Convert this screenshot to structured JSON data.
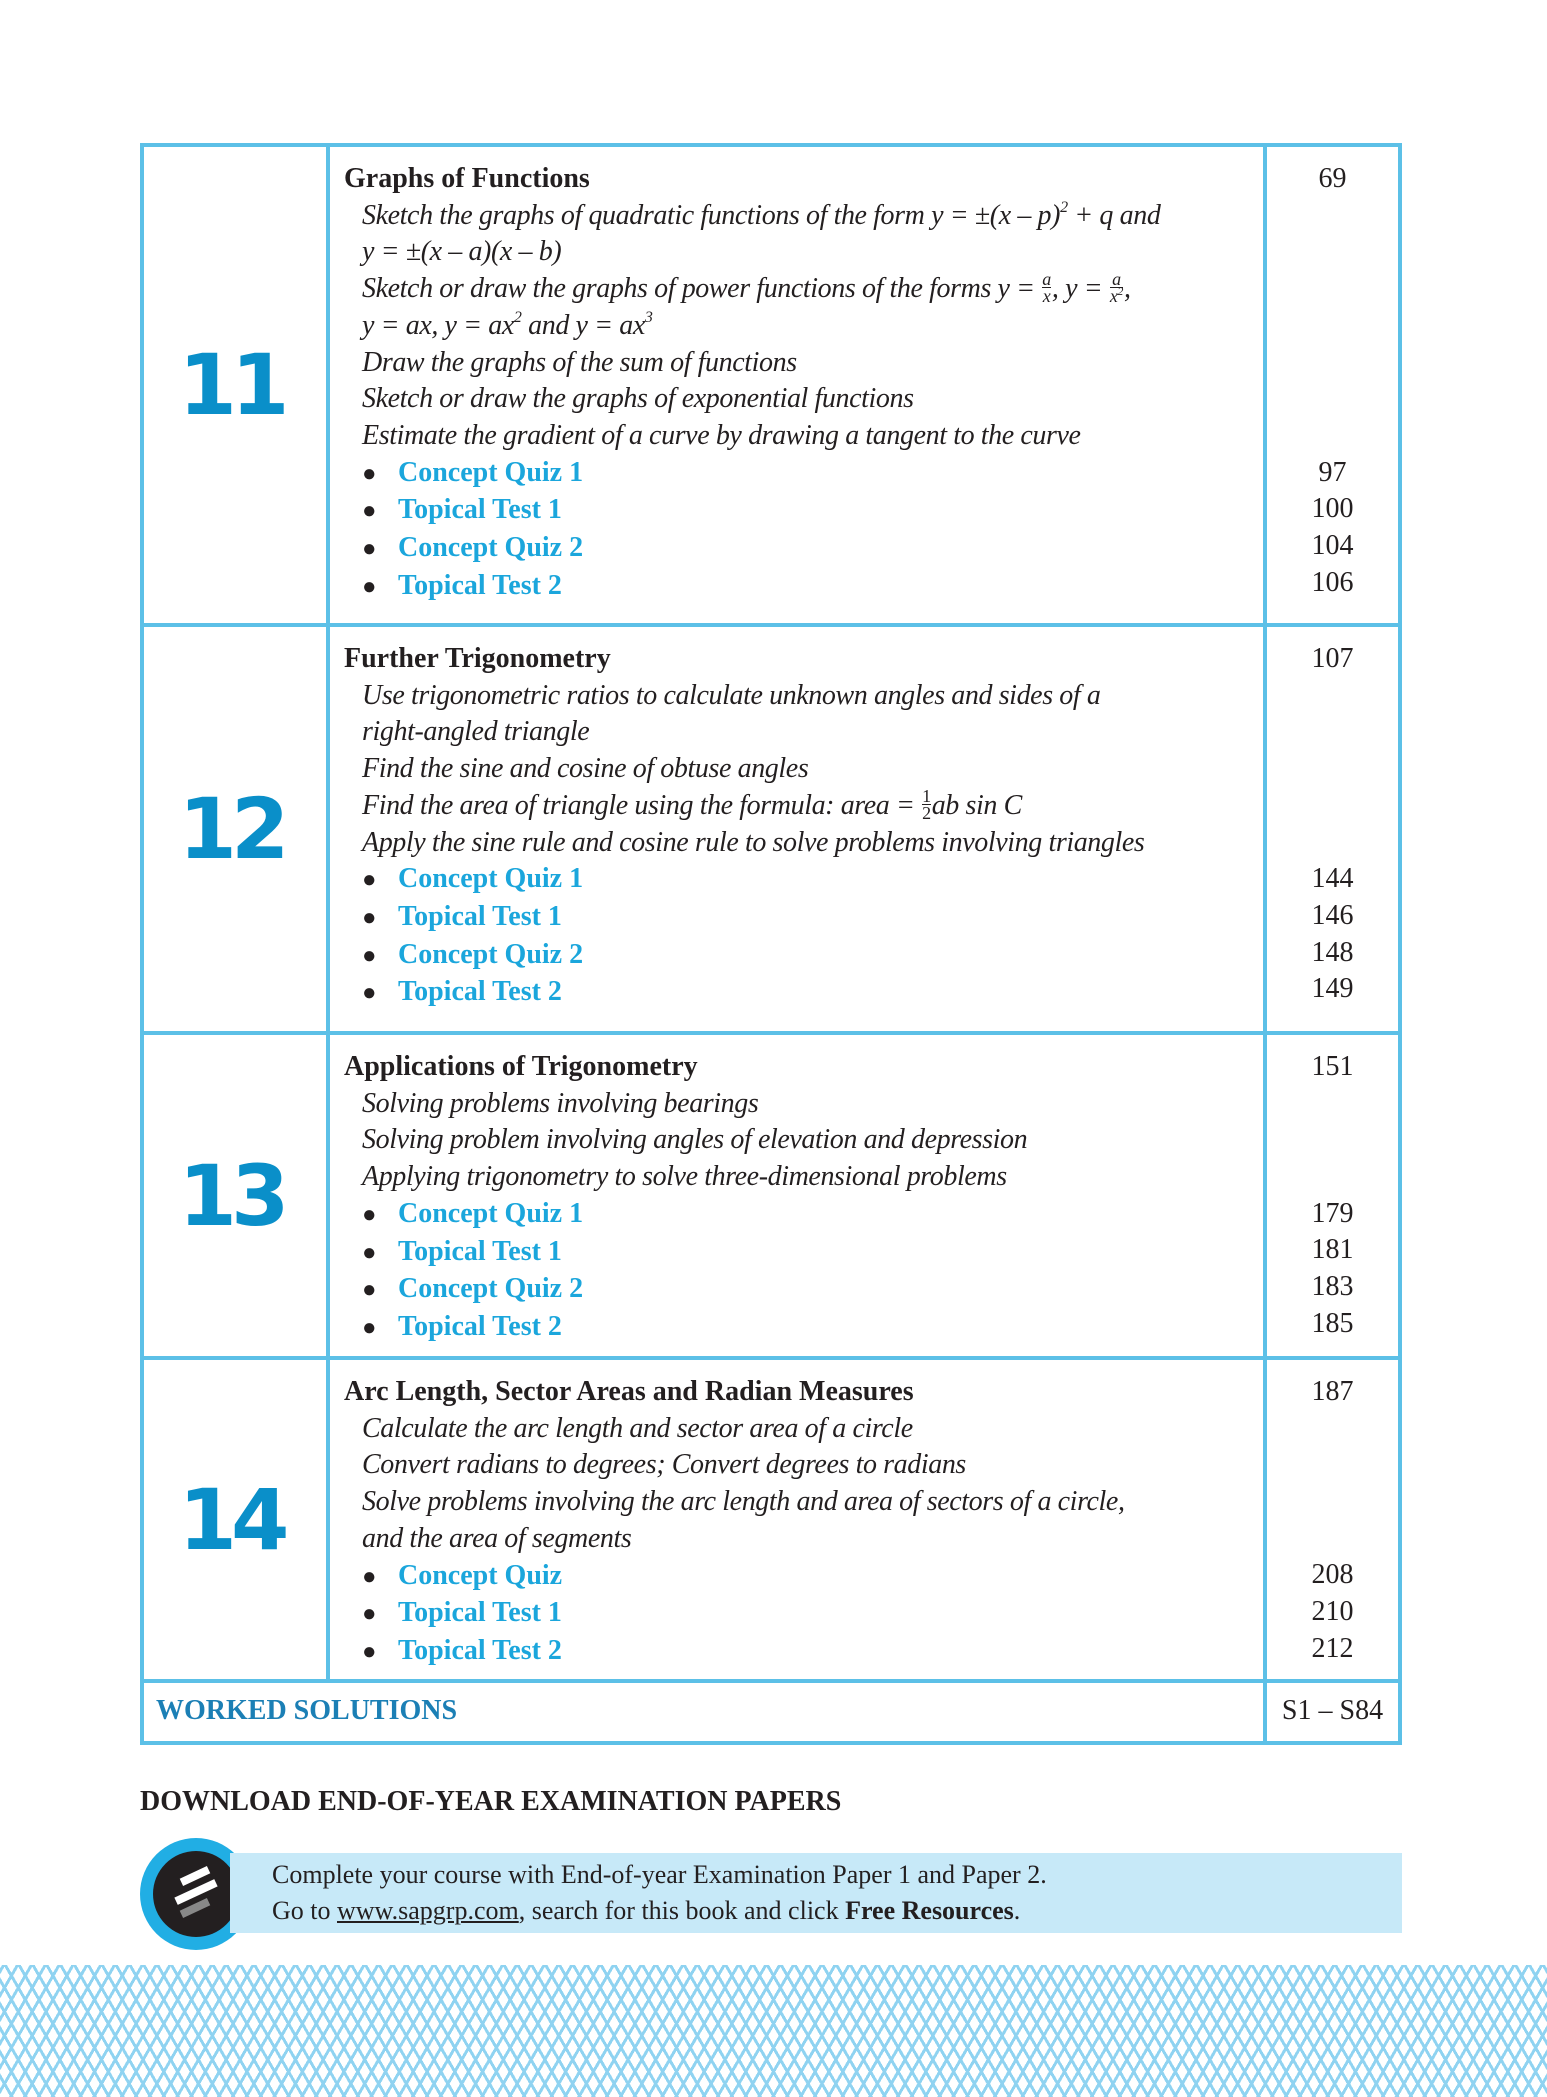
{
  "chapters": [
    {
      "number": "11",
      "title": "Graphs of Functions",
      "page": "69",
      "objectives": [
        "Sketch the graphs of quadratic functions of the form y = ±(x – p)² + q and",
        "y = ±(x – a)(x – b)",
        "Sketch or draw the graphs of power functions of the forms y = a/x, y = a/x²,",
        "y = ax, y = ax² and y = ax³",
        "Draw the graphs of the sum of functions",
        "Sketch or draw the graphs of exponential functions",
        "Estimate the gradient of a curve by drawing a tangent to the curve"
      ],
      "items": [
        {
          "label": "Concept Quiz 1",
          "page": "97"
        },
        {
          "label": "Topical Test 1",
          "page": "100"
        },
        {
          "label": "Concept Quiz 2",
          "page": "104"
        },
        {
          "label": "Topical Test 2",
          "page": "106"
        }
      ]
    },
    {
      "number": "12",
      "title": "Further Trigonometry",
      "page": "107",
      "objectives": [
        "Use trigonometric ratios to calculate unknown angles and sides of a",
        "right-angled triangle",
        "Find the sine and cosine of obtuse angles",
        "Find the area of triangle using the formula: area = ½ab sin C",
        "Apply the sine rule and cosine rule to solve problems involving triangles"
      ],
      "items": [
        {
          "label": "Concept Quiz 1",
          "page": "144"
        },
        {
          "label": "Topical Test 1",
          "page": "146"
        },
        {
          "label": "Concept Quiz 2",
          "page": "148"
        },
        {
          "label": "Topical Test 2",
          "page": "149"
        }
      ]
    },
    {
      "number": "13",
      "title": "Applications of Trigonometry",
      "page": "151",
      "objectives": [
        "Solving problems involving bearings",
        "Solving problem involving angles of elevation and depression",
        "Applying trigonometry to solve three-dimensional problems"
      ],
      "items": [
        {
          "label": "Concept Quiz 1",
          "page": "179"
        },
        {
          "label": "Topical Test 1",
          "page": "181"
        },
        {
          "label": "Concept Quiz 2",
          "page": "183"
        },
        {
          "label": "Topical Test 2",
          "page": "185"
        }
      ]
    },
    {
      "number": "14",
      "title": "Arc Length, Sector Areas and Radian Measures",
      "page": "187",
      "objectives": [
        "Calculate the arc length and sector area of a circle",
        "Convert radians to degrees; Convert degrees to radians",
        "Solve problems involving the arc length and area of sectors of a circle,",
        "and the area of segments"
      ],
      "items": [
        {
          "label": "Concept Quiz",
          "page": "208"
        },
        {
          "label": "Topical Test 1",
          "page": "210"
        },
        {
          "label": "Topical Test 2",
          "page": "212"
        }
      ]
    }
  ],
  "worked_solutions": {
    "label": "WORKED SOLUTIONS",
    "pages": "S1 – S84"
  },
  "download": {
    "heading": "DOWNLOAD END-OF-YEAR EXAMINATION PAPERS",
    "line1": "Complete your course with End-of-year Examination Paper 1 and Paper 2.",
    "go_to": "Go to ",
    "url": "www.sapgrp.com",
    "middle": ", search for this book and click ",
    "bold": "Free Resources",
    "end": "."
  },
  "colors": {
    "border": "#5cc0e7",
    "chapter_number": "#0a8fc9",
    "link": "#1ba6dc",
    "band": "#c7e9f8"
  }
}
